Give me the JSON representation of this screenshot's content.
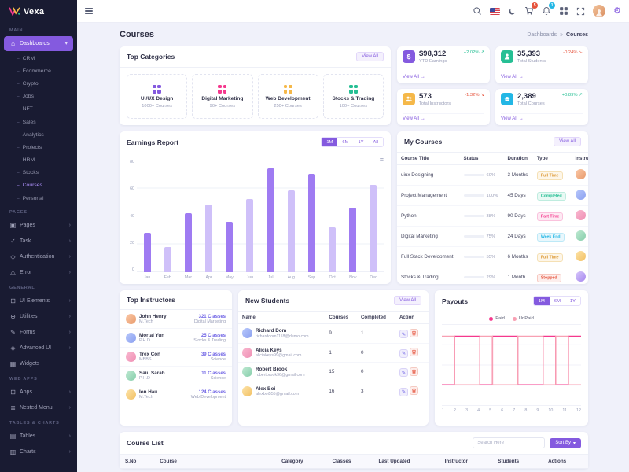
{
  "colors": {
    "primary": "#845adf",
    "success": "#26bf94",
    "warning": "#f5b849",
    "danger": "#e6533c",
    "info": "#23b7e5",
    "pink": "#f5388d"
  },
  "icons": {
    "chevron_down": "▾",
    "chevron_right": "›",
    "dash": "–",
    "gear": "⚙",
    "menu": "≡",
    "arrow_right": "→",
    "caret_down": "▾",
    "breadcrumb_sep": "»",
    "edit": "✎",
    "dollar": "$",
    "dashboards": "⌂",
    "pages": "▣",
    "task": "✓",
    "authentication": "◇",
    "error": "⚠",
    "ui_elements": "⊞",
    "utilities": "⊕",
    "forms": "✎",
    "advanced_ui": "◈",
    "widgets": "▦",
    "apps": "⊡",
    "nested_menu": "≣",
    "tables": "▤",
    "charts": "▥"
  },
  "app": {
    "name": "Vexa"
  },
  "header": {
    "cart_badge": "5",
    "bell_badge": "1"
  },
  "page": {
    "title": "Courses",
    "breadcrumb_parent": "Dashboards",
    "breadcrumb_current": "Courses"
  },
  "sidebar": {
    "sections": {
      "main": "Main",
      "pages": "Pages",
      "general": "General",
      "webapps": "Web Apps",
      "tables": "Tables & Charts"
    },
    "dashboards": "Dashboards",
    "dashboard_children": [
      "CRM",
      "Ecommerce",
      "Crypto",
      "Jobs",
      "NFT",
      "Sales",
      "Analytics",
      "Projects",
      "HRM",
      "Stocks",
      "Courses",
      "Personal"
    ],
    "pages_items": [
      "Pages",
      "Task",
      "Authentication",
      "Error"
    ],
    "general_items": [
      "UI Elements",
      "Utilities",
      "Forms",
      "Advanced UI",
      "Widgets"
    ],
    "webapps_items": [
      "Apps",
      "Nested Menu"
    ],
    "tables_items": [
      "Tables",
      "Charts"
    ]
  },
  "top_categories": {
    "title": "Top Categories",
    "view_all": "View All",
    "items": [
      {
        "name": "UI/UX Design",
        "count": "1000+ Courses",
        "color": "#845adf"
      },
      {
        "name": "Digital Marketing",
        "count": "90+ Courses",
        "color": "#f5388d"
      },
      {
        "name": "Web Development",
        "count": "250+ Courses",
        "color": "#f5b849"
      },
      {
        "name": "Stocks & Trading",
        "count": "100+ Courses",
        "color": "#26bf94"
      }
    ]
  },
  "stats": [
    {
      "value": "$98,312",
      "label": "YTD Earnings",
      "trend": "+2.02%",
      "trend_icon": "↗",
      "trend_dir": "up",
      "link": "View All",
      "variant": "primary"
    },
    {
      "value": "35,393",
      "label": "Total Students",
      "trend": "-0.24%",
      "trend_icon": "↘",
      "trend_dir": "down",
      "link": "View All",
      "variant": "success"
    },
    {
      "value": "573",
      "label": "Total Instructors",
      "trend": "-1.32%",
      "trend_icon": "↘",
      "trend_dir": "down",
      "link": "View All",
      "variant": "warning"
    },
    {
      "value": "2,389",
      "label": "Total Courses",
      "trend": "+0.89%",
      "trend_icon": "↗",
      "trend_dir": "up",
      "link": "View All",
      "variant": "info"
    }
  ],
  "earnings": {
    "title": "Earnings Report",
    "periods": [
      "1M",
      "6M",
      "1Y",
      "All"
    ],
    "active_period": "1M",
    "chart": {
      "type": "bar",
      "labels": [
        "Jan",
        "Feb",
        "Mar",
        "Apr",
        "May",
        "Jun",
        "Jul",
        "Aug",
        "Sep",
        "Oct",
        "Nov",
        "Dec"
      ],
      "values": [
        28,
        18,
        42,
        48,
        36,
        52,
        74,
        58,
        70,
        32,
        46,
        62
      ],
      "ymax": 80,
      "yticks": [
        80,
        60,
        40,
        20,
        0
      ],
      "colors": [
        "#9f7bf2",
        "#cfc0f9"
      ]
    }
  },
  "my_courses": {
    "title": "My Courses",
    "view_all": "View All",
    "columns": [
      "Course Title",
      "Status",
      "Duration",
      "Type",
      "Instructor"
    ],
    "rows": [
      {
        "title": "uiux Designing",
        "progress": 60,
        "progress_text": "60%",
        "bar": "primary",
        "duration": "3 Months",
        "type": "Full Time",
        "type_variant": "warning"
      },
      {
        "title": "Project Management",
        "progress": 100,
        "progress_text": "100%",
        "bar": "success",
        "duration": "45 Days",
        "type": "Completed",
        "type_variant": "success"
      },
      {
        "title": "Python",
        "progress": 38,
        "progress_text": "38%",
        "bar": "primary",
        "duration": "90 Days",
        "type": "Part Time",
        "type_variant": "pink"
      },
      {
        "title": "Digital Marketing",
        "progress": 75,
        "progress_text": "75%",
        "bar": "primary",
        "duration": "24 Days",
        "type": "Week End",
        "type_variant": "info"
      },
      {
        "title": "Full Stack Development",
        "progress": 55,
        "progress_text": "55%",
        "bar": "primary",
        "duration": "6 Months",
        "type": "Full Time",
        "type_variant": "warning"
      },
      {
        "title": "Stocks & Trading",
        "progress": 29,
        "progress_text": "29%",
        "bar": "danger",
        "duration": "1 Month",
        "type": "Stopped",
        "type_variant": "danger"
      }
    ]
  },
  "top_instructors": {
    "title": "Top Instructors",
    "rows": [
      {
        "name": "John Henry",
        "degree": "M.Tech",
        "classes": "321 Classes",
        "field": "Digital Marketing"
      },
      {
        "name": "Mortal Yun",
        "degree": "P.H.D",
        "classes": "25 Classes",
        "field": "Stocks & Trading"
      },
      {
        "name": "Trex Con",
        "degree": "MBBS",
        "classes": "39 Classes",
        "field": "Science"
      },
      {
        "name": "Saiu Sarah",
        "degree": "P.H.D",
        "classes": "11 Classes",
        "field": "Science"
      },
      {
        "name": "Ion Hau",
        "degree": "M.Tech",
        "classes": "124 Classes",
        "field": "Web Development"
      }
    ]
  },
  "new_students": {
    "title": "New Students",
    "view_all": "View All",
    "columns": [
      "Name",
      "Courses",
      "Completed",
      "Action"
    ],
    "rows": [
      {
        "name": "Richard Dom",
        "email": "richarddom1118@demo.com",
        "courses": "9",
        "completed": "1"
      },
      {
        "name": "Alicia Keys",
        "email": "aliciakeys99@gmail.com",
        "courses": "1",
        "completed": "0"
      },
      {
        "name": "Robert Brook",
        "email": "robertbrook96@gmail.com",
        "courses": "15",
        "completed": "0"
      },
      {
        "name": "Alex Boi",
        "email": "alexboi555@gmail.com",
        "courses": "16",
        "completed": "3"
      }
    ]
  },
  "payouts": {
    "title": "Payouts",
    "periods": [
      "1M",
      "6M",
      "1Y"
    ],
    "active_period": "1M",
    "legend": [
      {
        "label": "Paid",
        "color": "#f5388d"
      },
      {
        "label": "UnPaid",
        "color": "#f8a0b3"
      }
    ],
    "chart": {
      "type": "step-line",
      "x": [
        1,
        2,
        3,
        4,
        5,
        6,
        7,
        8,
        9,
        10,
        11,
        12
      ],
      "ymax": 100,
      "series": [
        {
          "name": "Paid",
          "color": "#f5388d",
          "values": [
            25,
            85,
            85,
            25,
            85,
            85,
            25,
            25,
            85,
            25,
            85,
            85
          ]
        },
        {
          "name": "UnPaid",
          "color": "#f8a0b3",
          "values": [
            85,
            25,
            25,
            85,
            25,
            25,
            85,
            85,
            25,
            85,
            25,
            25
          ]
        }
      ]
    }
  },
  "course_list": {
    "title": "Course List",
    "search_placeholder": "Search Here",
    "sort_label": "Sort By",
    "columns": [
      "S.No",
      "Course",
      "Category",
      "Classes",
      "Last Updated",
      "Instructor",
      "Students",
      "Actions"
    ]
  }
}
